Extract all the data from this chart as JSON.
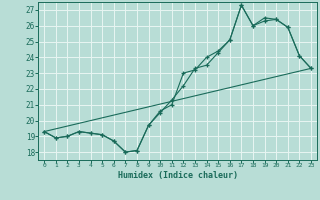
{
  "xlabel": "Humidex (Indice chaleur)",
  "xlim": [
    -0.5,
    23.5
  ],
  "ylim": [
    17.5,
    27.5
  ],
  "yticks": [
    18,
    19,
    20,
    21,
    22,
    23,
    24,
    25,
    26,
    27
  ],
  "xticks": [
    0,
    1,
    2,
    3,
    4,
    5,
    6,
    7,
    8,
    9,
    10,
    11,
    12,
    13,
    14,
    15,
    16,
    17,
    18,
    19,
    20,
    21,
    22,
    23
  ],
  "bg_color": "#b8ddd6",
  "grid_color": "#e8f5f2",
  "line_color": "#1a6b5a",
  "series1_x": [
    0,
    1,
    2,
    3,
    4,
    5,
    6,
    7,
    8,
    9,
    10,
    11,
    12,
    13,
    14,
    15,
    16,
    17,
    18,
    19,
    20,
    21,
    22,
    23
  ],
  "series1_y": [
    19.3,
    18.9,
    19.0,
    19.3,
    19.2,
    19.1,
    18.7,
    18.0,
    18.1,
    19.7,
    20.5,
    21.3,
    22.2,
    23.3,
    23.5,
    24.3,
    25.1,
    27.3,
    26.0,
    26.5,
    26.4,
    25.9,
    24.1,
    23.3
  ],
  "series2_x": [
    0,
    1,
    2,
    3,
    4,
    5,
    6,
    7,
    8,
    9,
    10,
    11,
    12,
    13,
    14,
    15,
    16,
    17,
    18,
    19,
    20,
    21,
    22,
    23
  ],
  "series2_y": [
    19.3,
    18.9,
    19.0,
    19.3,
    19.2,
    19.1,
    18.7,
    18.0,
    18.1,
    19.7,
    20.6,
    21.0,
    23.0,
    23.2,
    24.0,
    24.4,
    25.1,
    27.3,
    26.0,
    26.3,
    26.4,
    25.9,
    24.1,
    23.3
  ],
  "series3_x": [
    0,
    23
  ],
  "series3_y": [
    19.3,
    23.3
  ]
}
